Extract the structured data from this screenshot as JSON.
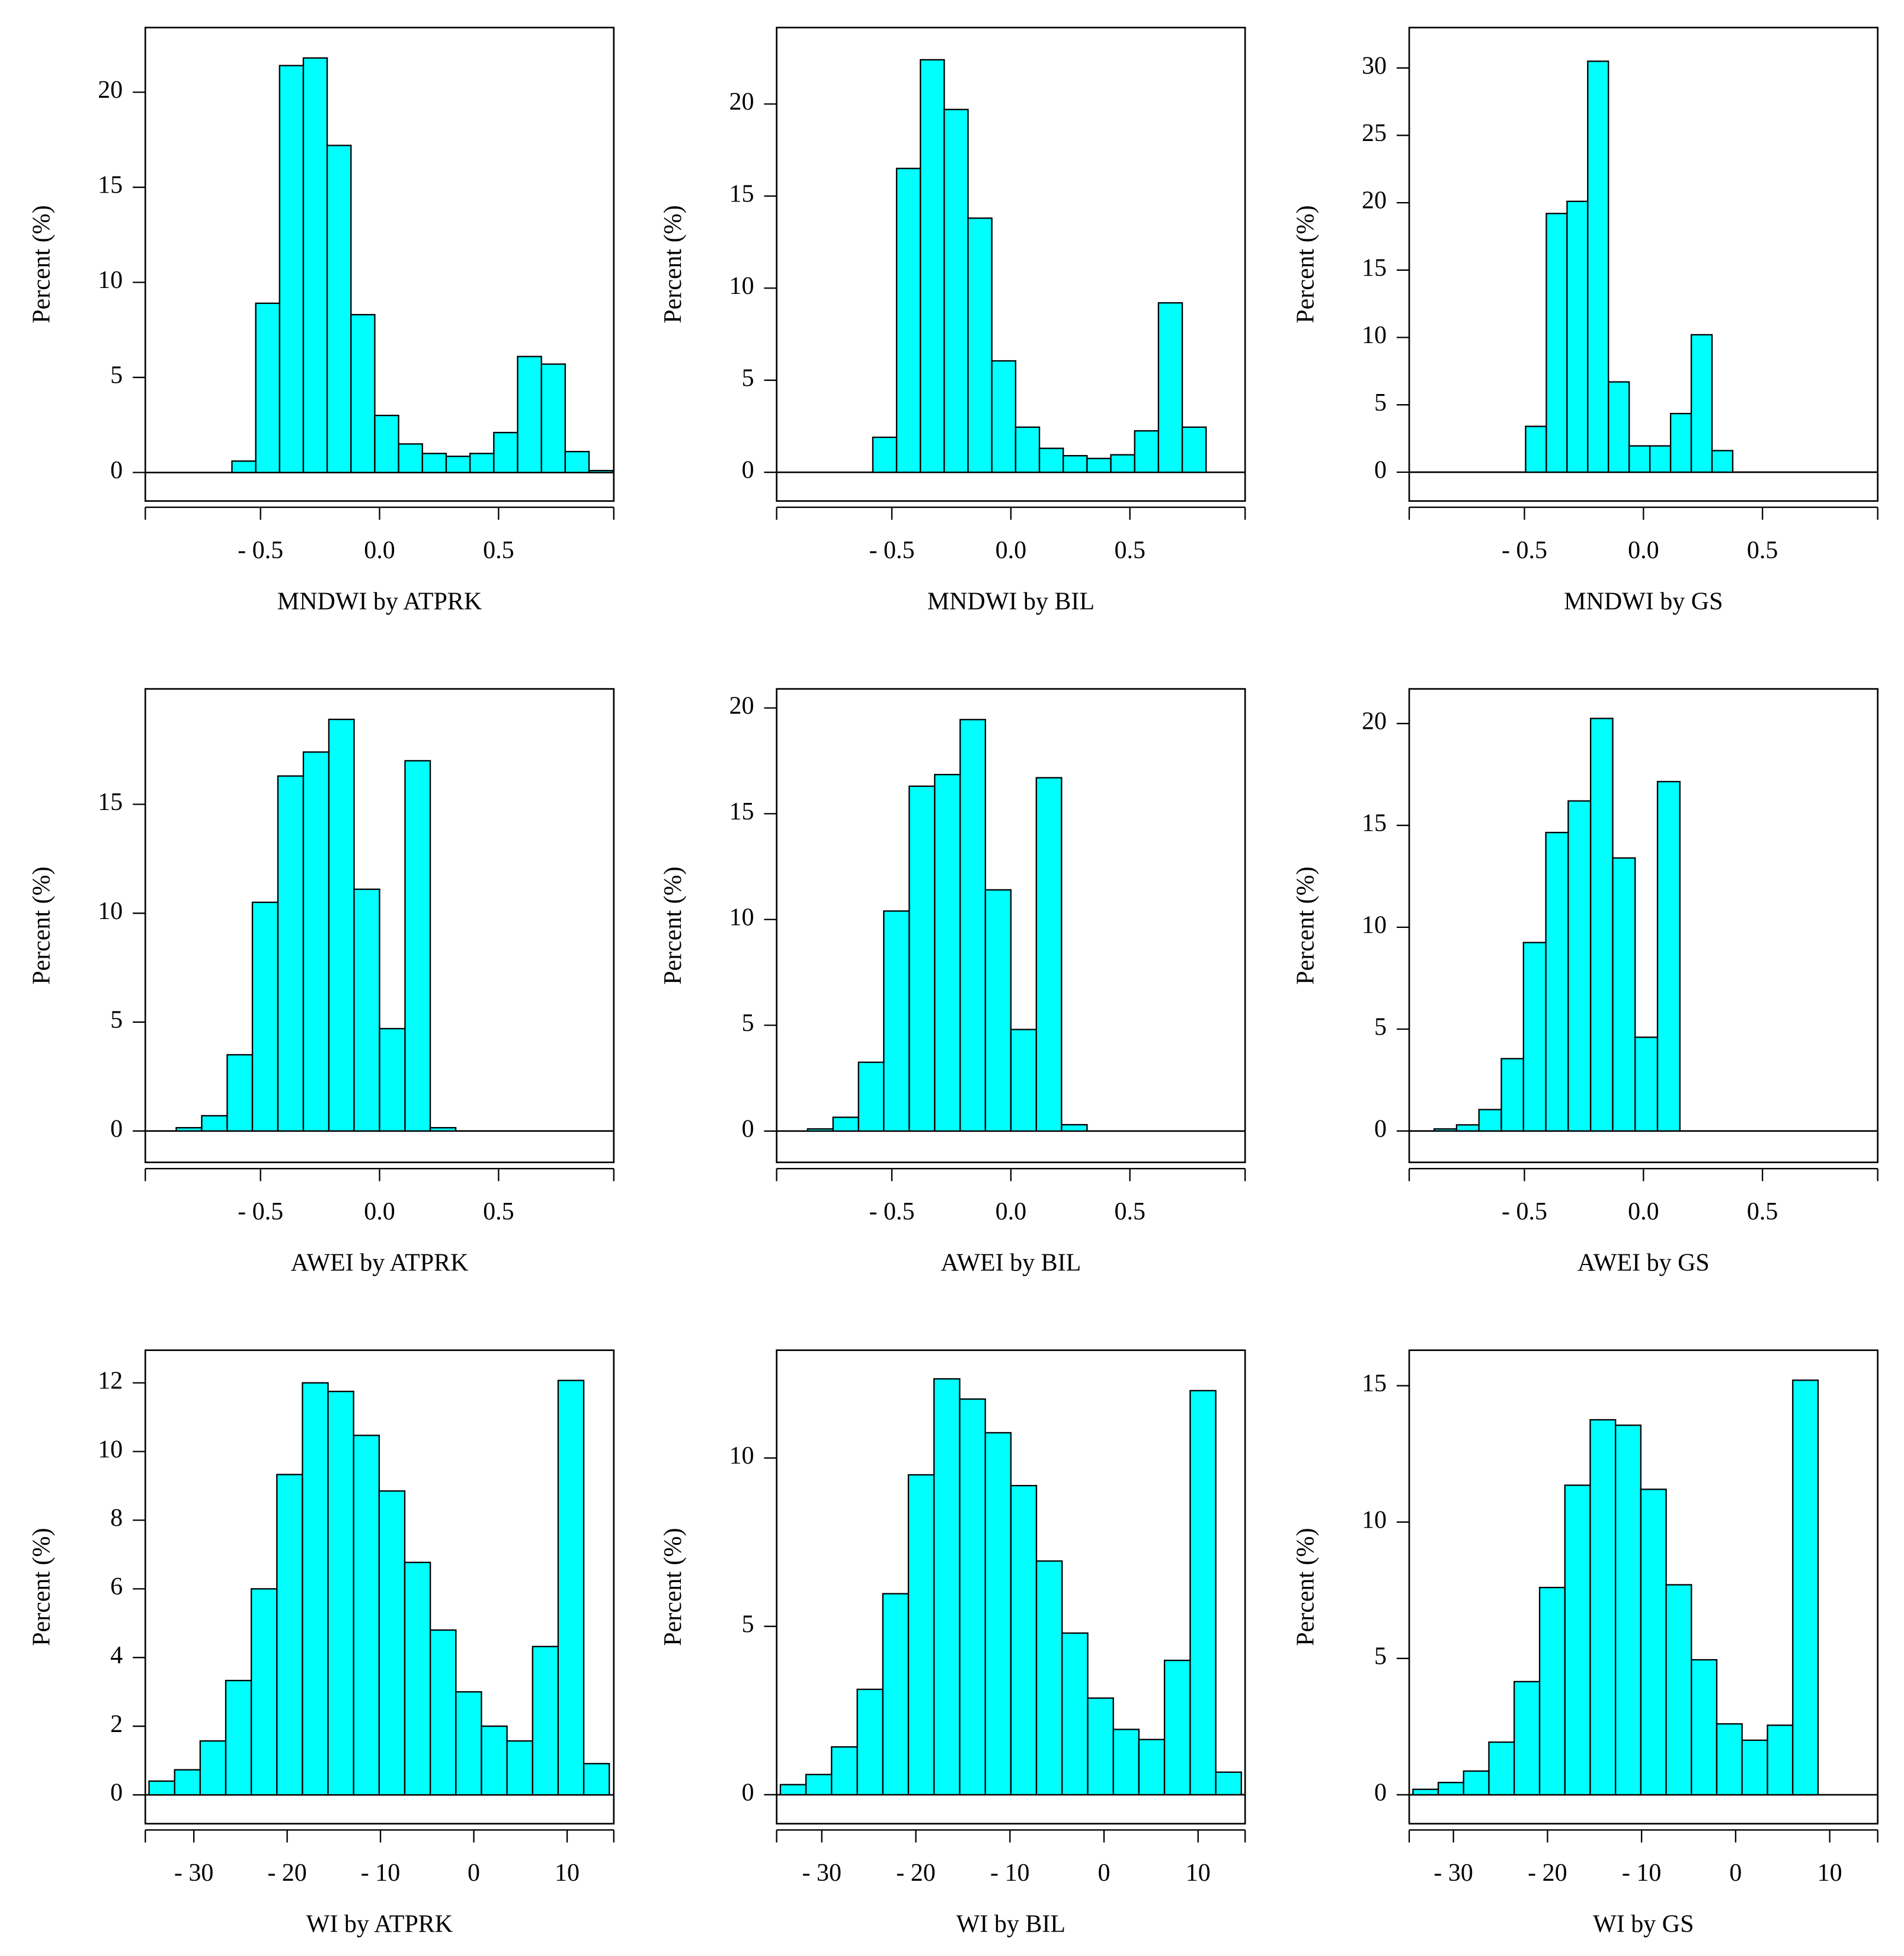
{
  "chart_data": [
    {
      "type": "histogram",
      "xlabel": "MNDWI by ATPRK",
      "ylabel": "Percent (%)",
      "color": "#00ffff",
      "bins": [
        -0.62,
        -0.52,
        -0.42,
        -0.32,
        -0.22,
        -0.12,
        -0.02,
        0.08,
        0.18,
        0.28,
        0.38,
        0.48,
        0.58,
        0.68,
        0.78,
        0.88,
        0.98
      ],
      "values": [
        0.6,
        8.9,
        21.4,
        21.8,
        17.2,
        8.3,
        3.0,
        1.5,
        1.0,
        0.85,
        1.0,
        2.1,
        6.1,
        5.7,
        1.1,
        0.1
      ],
      "xlim": [
        -0.984,
        0.984
      ],
      "ylim": [
        -1.5,
        23.4
      ],
      "xticks": [
        {
          "value": -0.5,
          "label": "- 0.5"
        },
        {
          "value": 0,
          "label": "0.0"
        },
        0.5
      ],
      "yticks": [
        0,
        5,
        10,
        15,
        20
      ]
    },
    {
      "type": "histogram",
      "xlabel": "MNDWI by BIL",
      "ylabel": "Percent (%)",
      "color": "#00ffff",
      "bins": [
        -0.58,
        -0.48,
        -0.38,
        -0.28,
        -0.18,
        -0.08,
        0.02,
        0.12,
        0.22,
        0.32,
        0.42,
        0.52,
        0.62,
        0.72,
        0.82
      ],
      "values": [
        1.9,
        16.5,
        22.4,
        19.7,
        13.8,
        6.05,
        2.45,
        1.3,
        0.9,
        0.75,
        0.95,
        2.25,
        9.2,
        2.45
      ],
      "xlim": [
        -0.984,
        0.984
      ],
      "ylim": [
        -1.56,
        24.15
      ],
      "xticks": [
        {
          "value": -0.5,
          "label": "- 0.5"
        },
        {
          "value": 0,
          "label": "0.0"
        },
        0.5
      ],
      "yticks": [
        0,
        5,
        10,
        15,
        20
      ]
    },
    {
      "type": "histogram",
      "xlabel": "MNDWI by GS",
      "ylabel": "Percent (%)",
      "color": "#00ffff",
      "bins": [
        -0.495,
        -0.408,
        -0.321,
        -0.234,
        -0.147,
        -0.06,
        0.027,
        0.114,
        0.201,
        0.288,
        0.375
      ],
      "values": [
        3.4,
        19.2,
        20.1,
        30.5,
        6.7,
        1.95,
        1.95,
        4.35,
        10.2,
        1.6
      ],
      "xlim": [
        -0.984,
        0.984
      ],
      "ylim": [
        -2.14,
        33.0
      ],
      "xticks": [
        {
          "value": -0.5,
          "label": "- 0.5"
        },
        {
          "value": 0,
          "label": "0.0"
        },
        0.5
      ],
      "yticks": [
        0,
        5,
        10,
        15,
        20,
        25,
        30
      ]
    },
    {
      "type": "histogram",
      "xlabel": "AWEI by ATPRK",
      "ylabel": "Percent (%)",
      "color": "#00ffff",
      "bins": [
        -0.854,
        -0.747,
        -0.64,
        -0.534,
        -0.427,
        -0.32,
        -0.213,
        -0.107,
        0,
        0.107,
        0.213,
        0.32
      ],
      "values": [
        0.15,
        0.7,
        3.5,
        10.5,
        16.3,
        17.4,
        18.9,
        11.1,
        4.7,
        17.0,
        0.15
      ],
      "xlim": [
        -0.984,
        0.984
      ],
      "ylim": [
        -1.44,
        20.3
      ],
      "xticks": [
        {
          "value": -0.5,
          "label": "- 0.5"
        },
        {
          "value": 0,
          "label": "0.0"
        },
        0.5
      ],
      "yticks": [
        0,
        5,
        10,
        15
      ]
    },
    {
      "type": "histogram",
      "xlabel": "AWEI by BIL",
      "ylabel": "Percent (%)",
      "color": "#00ffff",
      "bins": [
        -0.854,
        -0.747,
        -0.64,
        -0.534,
        -0.427,
        -0.32,
        -0.213,
        -0.107,
        0,
        0.107,
        0.213,
        0.32
      ],
      "values": [
        0.1,
        0.65,
        3.25,
        10.4,
        16.3,
        16.85,
        19.45,
        11.4,
        4.8,
        16.7,
        0.3
      ],
      "xlim": [
        -0.984,
        0.984
      ],
      "ylim": [
        -1.48,
        20.9
      ],
      "xticks": [
        {
          "value": -0.5,
          "label": "- 0.5"
        },
        {
          "value": 0,
          "label": "0.0"
        },
        0.5
      ],
      "yticks": [
        0,
        5,
        10,
        15,
        20
      ]
    },
    {
      "type": "histogram",
      "xlabel": "AWEI by GS",
      "ylabel": "Percent (%)",
      "color": "#00ffff",
      "bins": [
        -0.879,
        -0.785,
        -0.691,
        -0.597,
        -0.504,
        -0.41,
        -0.316,
        -0.222,
        -0.129,
        -0.035,
        0.059,
        0.153
      ],
      "values": [
        0.1,
        0.3,
        1.05,
        3.55,
        9.25,
        14.65,
        16.2,
        20.25,
        13.4,
        4.6,
        17.15
      ],
      "xlim": [
        -0.984,
        0.984
      ],
      "ylim": [
        -1.54,
        21.7
      ],
      "xticks": [
        {
          "value": -0.5,
          "label": "- 0.5"
        },
        {
          "value": 0,
          "label": "0.0"
        },
        0.5
      ],
      "yticks": [
        0,
        5,
        10,
        15,
        20
      ]
    },
    {
      "type": "histogram",
      "xlabel": "WI by ATPRK",
      "ylabel": "Percent (%)",
      "color": "#00ffff",
      "bins": [
        -34.8,
        -32.06,
        -29.32,
        -26.58,
        -23.84,
        -21.1,
        -18.36,
        -15.62,
        -12.88,
        -10.14,
        -7.4,
        -4.66,
        -1.92,
        0.82,
        3.56,
        6.3,
        9.04,
        11.78,
        14.52
      ],
      "values": [
        0.4,
        0.73,
        1.57,
        3.33,
        6.0,
        9.33,
        12.0,
        11.75,
        10.47,
        8.85,
        6.77,
        4.8,
        3.0,
        2.0,
        1.57,
        4.32,
        12.07,
        0.91
      ],
      "xlim": [
        -35.2,
        15.0
      ],
      "ylim": [
        -0.84,
        12.95
      ],
      "xticks": [
        {
          "value": -30,
          "label": "- 30"
        },
        {
          "value": -20,
          "label": "- 20"
        },
        {
          "value": -10,
          "label": "- 10"
        },
        0,
        10
      ],
      "yticks": [
        0,
        2,
        4,
        6,
        8,
        10,
        12
      ]
    },
    {
      "type": "histogram",
      "xlabel": "WI by BIL",
      "ylabel": "Percent (%)",
      "color": "#00ffff",
      "bins": [
        -34.4,
        -31.68,
        -28.96,
        -26.23,
        -23.51,
        -20.79,
        -18.07,
        -15.34,
        -12.62,
        -9.9,
        -7.18,
        -4.46,
        -1.73,
        0.99,
        3.71,
        6.43,
        9.16,
        11.88,
        14.6
      ],
      "values": [
        0.3,
        0.6,
        1.42,
        3.13,
        5.97,
        9.5,
        12.35,
        11.75,
        10.75,
        9.18,
        6.94,
        4.8,
        2.87,
        1.94,
        1.64,
        3.99,
        12.0,
        0.67
      ],
      "xlim": [
        -34.8,
        15.0
      ],
      "ylim": [
        -0.86,
        13.2
      ],
      "xticks": [
        {
          "value": -30,
          "label": "- 30"
        },
        {
          "value": -20,
          "label": "- 20"
        },
        {
          "value": -10,
          "label": "- 10"
        },
        0,
        10
      ],
      "yticks": [
        0,
        5,
        10
      ]
    },
    {
      "type": "histogram",
      "xlabel": "WI by GS",
      "ylabel": "Percent (%)",
      "color": "#00ffff",
      "bins": [
        -34.3,
        -31.61,
        -28.92,
        -26.23,
        -23.54,
        -20.84,
        -18.15,
        -15.46,
        -12.77,
        -10.08,
        -7.39,
        -4.7,
        -2.01,
        0.68,
        3.38,
        6.07,
        8.76
      ],
      "values": [
        0.2,
        0.45,
        0.87,
        1.93,
        4.15,
        7.6,
        11.35,
        13.75,
        13.55,
        11.2,
        7.7,
        4.95,
        2.6,
        2.0,
        2.55,
        15.2
      ],
      "xlim": [
        -34.7,
        15.1
      ],
      "ylim": [
        -1.06,
        16.3
      ],
      "xticks": [
        {
          "value": -30,
          "label": "- 30"
        },
        {
          "value": -20,
          "label": "- 20"
        },
        {
          "value": -10,
          "label": "- 10"
        },
        0,
        10
      ],
      "yticks": [
        0,
        5,
        10,
        15
      ]
    }
  ]
}
